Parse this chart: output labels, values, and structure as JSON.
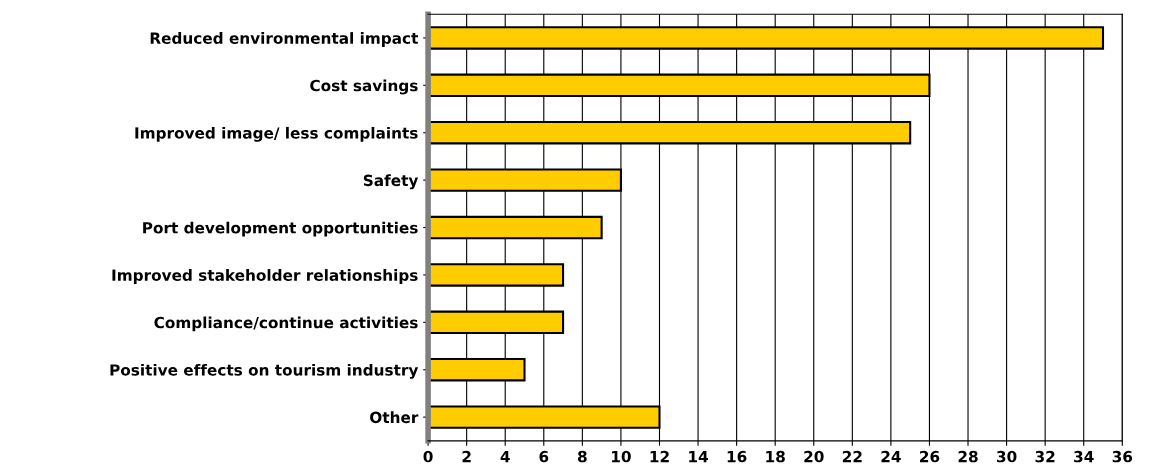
{
  "chart_data": {
    "type": "bar",
    "orientation": "horizontal",
    "categories": [
      "Reduced environmental impact",
      "Cost savings",
      "Improved image/ less complaints",
      "Safety",
      "Port development opportunities",
      "Improved stakeholder relationships",
      "Compliance/continue activities",
      "Positive effects on tourism industry",
      "Other"
    ],
    "values": [
      35,
      26,
      25,
      10,
      9,
      7,
      7,
      5,
      12
    ],
    "color": "#ffcc00",
    "xlim": [
      0,
      36
    ],
    "xticks": [
      0,
      2,
      4,
      6,
      8,
      10,
      12,
      14,
      16,
      18,
      20,
      22,
      24,
      26,
      28,
      30,
      32,
      34,
      36
    ],
    "grid": "x",
    "legend": false
  }
}
